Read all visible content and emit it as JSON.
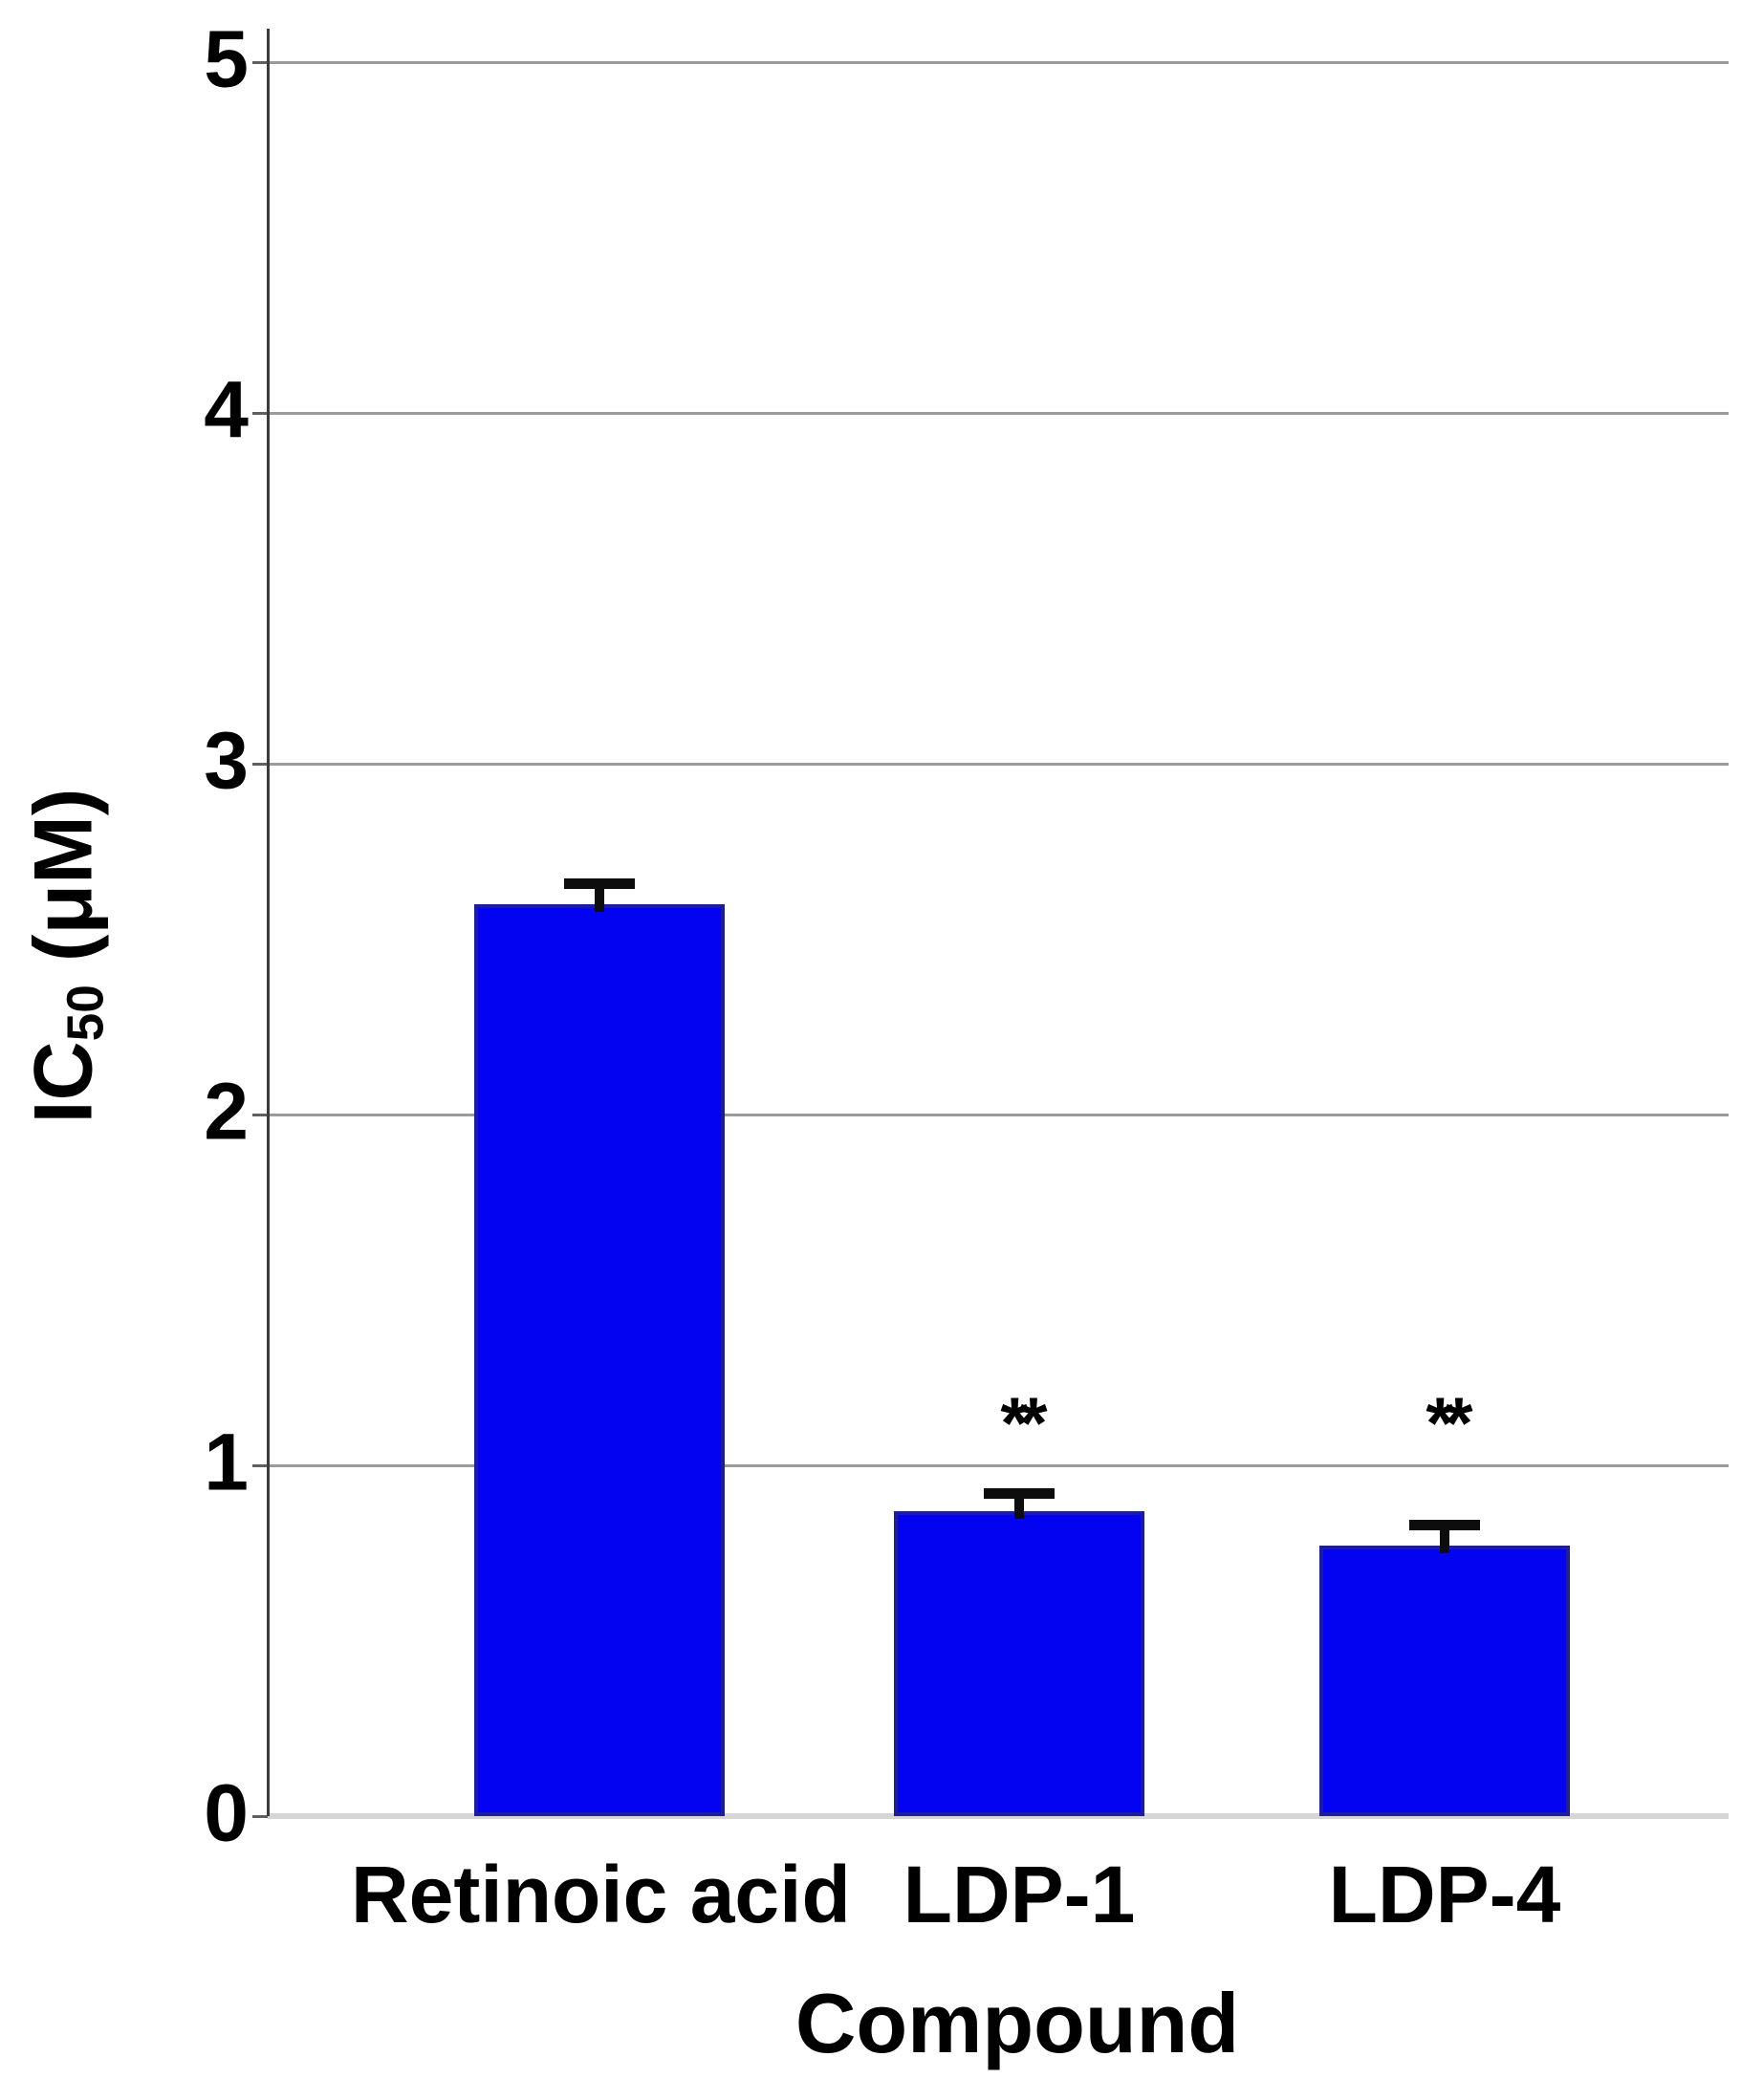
{
  "chart_data": {
    "type": "bar",
    "title": "",
    "xlabel": "Compound",
    "ylabel": "IC50 (μM)",
    "ylabel_parts": {
      "prefix": "IC",
      "sub": "50",
      "suffix": " (μM)"
    },
    "categories": [
      "Retinoic acid",
      "LDP-1",
      "LDP-4"
    ],
    "values": [
      2.6,
      0.87,
      0.77
    ],
    "errors_plus": [
      0.06,
      0.05,
      0.06
    ],
    "significance": [
      "",
      "**",
      "**"
    ],
    "yticks": [
      0,
      1,
      2,
      3,
      4,
      5
    ],
    "ytick_labels": [
      "0",
      "1",
      "2",
      "3",
      "4",
      "5"
    ],
    "ylim": [
      0,
      5
    ],
    "grid": true,
    "legend": "none",
    "colors": {
      "bar_fill": "#0303F2",
      "bar_border": "#1C1C9E",
      "gridline": "#9B9B9B",
      "baseline": "#D6D6D6",
      "axis_line": "#3C3C3C",
      "tick_mark": "#606060",
      "text": "#000000",
      "error_bar": "#0D0D0D",
      "background": "#FFFFFF"
    }
  }
}
